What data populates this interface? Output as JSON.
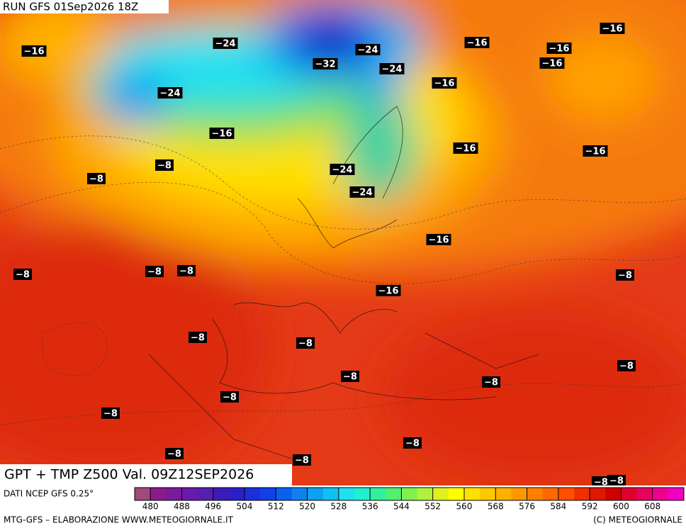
{
  "header": {
    "run": "RUN GFS 01Sep2026 18Z"
  },
  "map": {
    "title": "GPT + TMP Z500 Val. 09Z12SEP2026",
    "temperature_labels": [
      "−16",
      "−24",
      "−24",
      "−32",
      "−24",
      "−16",
      "−16",
      "−16",
      "−16",
      "−16",
      "−24",
      "−16",
      "−16",
      "−16",
      "−8",
      "−24",
      "−8",
      "−24",
      "−16",
      "−8",
      "−8",
      "−8",
      "−8",
      "−16",
      "−8",
      "−8",
      "−8",
      "−8",
      "−8",
      "−8",
      "−8",
      "−8",
      "−8",
      "−8",
      "−8",
      "−8"
    ]
  },
  "legend": {
    "source": "DATI NCEP GFS 0.25°",
    "ticks": [
      480,
      488,
      496,
      504,
      512,
      520,
      528,
      536,
      544,
      552,
      560,
      568,
      576,
      584,
      592,
      600,
      608
    ],
    "colors": [
      "#a04a7a",
      "#8b1a8b",
      "#7a1a9a",
      "#6a1aa8",
      "#5520b0",
      "#3c1ab8",
      "#2a20c8",
      "#1a30d8",
      "#1040e8",
      "#0a60f0",
      "#1080f0",
      "#10a0f0",
      "#10c0f0",
      "#20e0f0",
      "#20f0d0",
      "#30f0a0",
      "#50f070",
      "#80f050",
      "#b0f040",
      "#e0f020",
      "#ffff00",
      "#ffe000",
      "#ffc800",
      "#ffb000",
      "#ff9800",
      "#ff8000",
      "#ff6800",
      "#ff5000",
      "#f03000",
      "#e01800",
      "#d00000",
      "#e00030",
      "#e80060",
      "#f00090",
      "#f000c0"
    ]
  },
  "footer": {
    "left": "MTG-GFS – ELABORAZIONE WWW.METEOGIORNALE.IT",
    "right": "(C) METEOGIORNALE"
  }
}
